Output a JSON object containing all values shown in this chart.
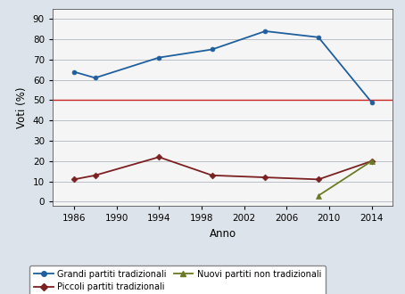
{
  "blue_x": [
    1986,
    1988,
    1994,
    1999,
    2004,
    2009,
    2014
  ],
  "blue_y": [
    64,
    61,
    71,
    75,
    84,
    81,
    49
  ],
  "red_x": [
    1986,
    1988,
    1994,
    1999,
    2004,
    2009,
    2014
  ],
  "red_y": [
    11,
    13,
    22,
    13,
    12,
    11,
    20
  ],
  "green_x": [
    2009,
    2014
  ],
  "green_y": [
    3,
    20
  ],
  "hline_y": 50,
  "blue_color": "#1f5f9e",
  "red_color": "#7b2020",
  "green_color": "#6b7a23",
  "hline_color": "#cc2222",
  "xlabel": "Anno",
  "ylabel": "Voti (%)",
  "xlim": [
    1984,
    2016
  ],
  "ylim": [
    -2,
    95
  ],
  "xticks": [
    1986,
    1990,
    1994,
    1998,
    2002,
    2006,
    2010,
    2014
  ],
  "yticks": [
    0,
    10,
    20,
    30,
    40,
    50,
    60,
    70,
    80,
    90
  ],
  "legend_blue": "Grandi partiti tradizionali",
  "legend_red": "Piccoli partiti tradizionali",
  "legend_green": "Nuovi partiti non tradizionali",
  "bg_color": "#dce3ea",
  "plot_bg_color": "#f5f5f5"
}
